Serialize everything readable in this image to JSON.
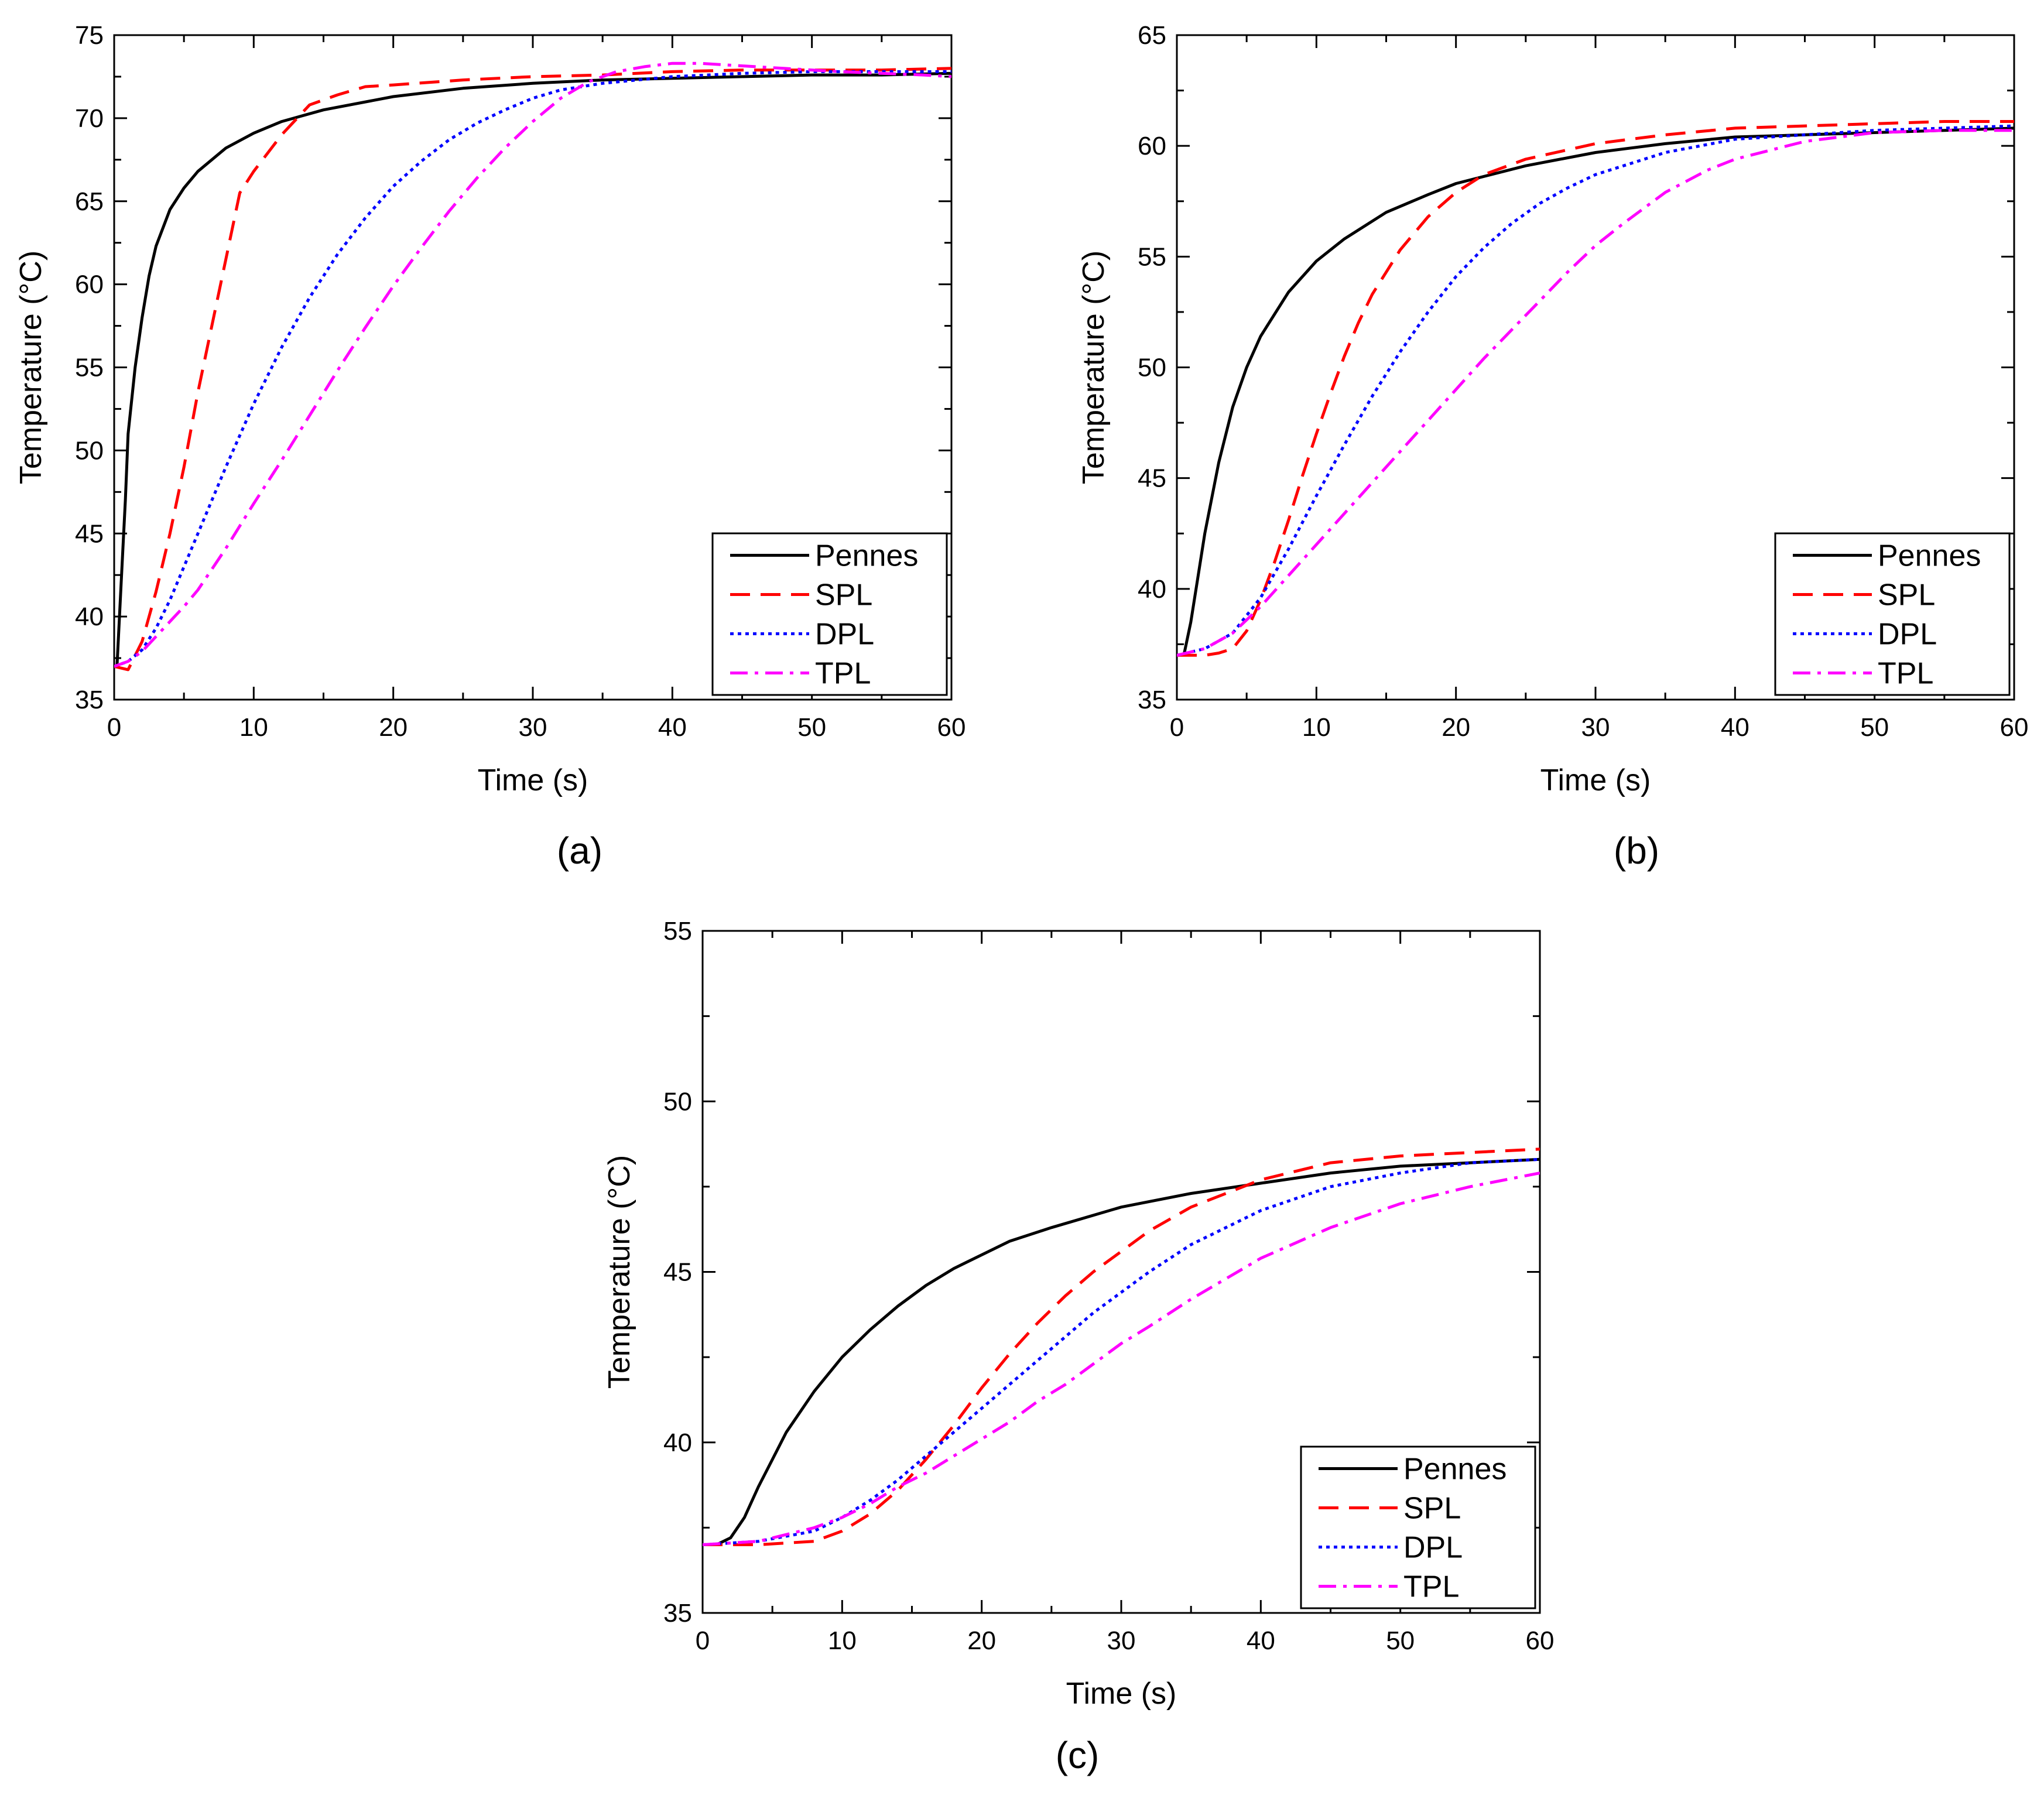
{
  "colors": {
    "background": "#ffffff",
    "axes": "#000000",
    "pennes": "#000000",
    "spl": "#ff0000",
    "dpl": "#0000ff",
    "tpl": "#ff00ff"
  },
  "chart_data": [
    {
      "type": "line",
      "caption": "(a)",
      "xlabel": "Time (s)",
      "ylabel": "Temperature (°C)",
      "xlim": [
        0,
        60
      ],
      "ylim": [
        35,
        75
      ],
      "xticks": [
        0,
        10,
        20,
        30,
        40,
        50,
        60
      ],
      "yticks": [
        35,
        40,
        45,
        50,
        55,
        60,
        65,
        70,
        75
      ],
      "legend_position": "bottom-right",
      "series": [
        {
          "name": "Pennes",
          "style": "solid",
          "x": [
            0.2,
            0.5,
            0.8,
            1,
            1.5,
            2,
            2.5,
            3,
            4,
            5,
            6,
            8,
            10,
            12,
            15,
            20,
            25,
            30,
            35,
            40,
            45,
            50,
            55,
            60
          ],
          "y": [
            37,
            42,
            47,
            51,
            55,
            58,
            60.5,
            62.3,
            64.5,
            65.8,
            66.8,
            68.2,
            69.1,
            69.8,
            70.5,
            71.3,
            71.8,
            72.1,
            72.3,
            72.4,
            72.5,
            72.6,
            72.6,
            72.7
          ]
        },
        {
          "name": "SPL",
          "style": "dashed",
          "x": [
            0,
            1,
            2,
            3,
            4,
            5,
            6,
            7,
            8,
            9,
            10,
            12,
            14,
            16,
            18,
            20,
            25,
            30,
            35,
            40,
            45,
            50,
            55,
            60
          ],
          "y": [
            37,
            36.8,
            38.5,
            41.5,
            45,
            49,
            53.5,
            57.5,
            61.5,
            65.5,
            66.8,
            69,
            70.8,
            71.4,
            71.9,
            72,
            72.3,
            72.5,
            72.6,
            72.8,
            72.9,
            72.9,
            72.9,
            73
          ]
        },
        {
          "name": "DPL",
          "style": "dotted",
          "x": [
            0,
            1,
            2,
            3,
            4,
            5,
            6,
            8,
            10,
            12,
            14,
            16,
            18,
            20,
            22,
            24,
            26,
            28,
            30,
            32,
            35,
            40,
            45,
            50,
            55,
            60
          ],
          "y": [
            37,
            37.3,
            38,
            39.3,
            41,
            43,
            45,
            49,
            52.8,
            56.2,
            59.2,
            61.8,
            64,
            65.9,
            67.4,
            68.7,
            69.7,
            70.5,
            71.2,
            71.7,
            72.1,
            72.5,
            72.7,
            72.8,
            72.8,
            72.8
          ]
        },
        {
          "name": "TPL",
          "style": "dashdot",
          "x": [
            0,
            1,
            2,
            3,
            4,
            5,
            6,
            8,
            10,
            12,
            14,
            16,
            18,
            20,
            22,
            24,
            26,
            28,
            30,
            32,
            34,
            36,
            38,
            40,
            42,
            44,
            46,
            48,
            50,
            52,
            55,
            58,
            60
          ],
          "y": [
            37,
            37.3,
            37.9,
            38.8,
            39.7,
            40.6,
            41.6,
            44.1,
            46.8,
            49.4,
            52.1,
            54.8,
            57.4,
            59.9,
            62.2,
            64.4,
            66.4,
            68.2,
            69.8,
            71.2,
            72.2,
            72.8,
            73.1,
            73.3,
            73.3,
            73.2,
            73.1,
            73,
            72.9,
            72.8,
            72.7,
            72.6,
            72.5
          ]
        }
      ]
    },
    {
      "type": "line",
      "caption": "(b)",
      "xlabel": "Time (s)",
      "ylabel": "Temperature (°C)",
      "xlim": [
        0,
        60
      ],
      "ylim": [
        35,
        65
      ],
      "xticks": [
        0,
        10,
        20,
        30,
        40,
        50,
        60
      ],
      "yticks": [
        35,
        40,
        45,
        50,
        55,
        60,
        65
      ],
      "legend_position": "bottom-right",
      "series": [
        {
          "name": "Pennes",
          "style": "solid",
          "x": [
            0.5,
            1,
            1.5,
            2,
            3,
            4,
            5,
            6,
            8,
            10,
            12,
            15,
            18,
            20,
            25,
            30,
            35,
            40,
            45,
            50,
            55,
            60
          ],
          "y": [
            37,
            38.5,
            40.5,
            42.5,
            45.7,
            48.2,
            50,
            51.4,
            53.4,
            54.8,
            55.8,
            57,
            57.8,
            58.3,
            59.1,
            59.7,
            60.1,
            60.4,
            60.5,
            60.6,
            60.7,
            60.8
          ]
        },
        {
          "name": "SPL",
          "style": "dashed",
          "x": [
            0,
            2,
            3,
            4,
            5,
            6,
            7,
            8,
            9,
            10,
            11,
            12,
            13,
            14,
            16,
            18,
            20,
            22,
            25,
            30,
            35,
            40,
            45,
            50,
            55,
            60
          ],
          "y": [
            37,
            37,
            37.1,
            37.3,
            38.1,
            39.5,
            41.2,
            43.1,
            45.1,
            47,
            48.8,
            50.5,
            52,
            53.3,
            55.3,
            56.8,
            57.9,
            58.7,
            59.4,
            60.1,
            60.5,
            60.8,
            60.9,
            61,
            61.1,
            61.1
          ]
        },
        {
          "name": "DPL",
          "style": "dotted",
          "x": [
            0,
            2,
            4,
            6,
            8,
            10,
            12,
            14,
            16,
            18,
            20,
            22,
            24,
            26,
            28,
            30,
            35,
            40,
            45,
            50,
            55,
            60
          ],
          "y": [
            37,
            37.3,
            38,
            39.6,
            41.8,
            44.2,
            46.5,
            48.7,
            50.7,
            52.5,
            54.1,
            55.4,
            56.5,
            57.4,
            58.1,
            58.7,
            59.7,
            60.3,
            60.5,
            60.7,
            60.8,
            60.9
          ]
        },
        {
          "name": "TPL",
          "style": "dashdot",
          "x": [
            0,
            2,
            4,
            6,
            8,
            10,
            12,
            14,
            16,
            18,
            20,
            22,
            24,
            26,
            28,
            30,
            32,
            35,
            38,
            40,
            45,
            50,
            55,
            60
          ],
          "y": [
            37,
            37.3,
            38,
            39.2,
            40.6,
            42,
            43.4,
            44.8,
            46.2,
            47.6,
            49,
            50.4,
            51.7,
            53,
            54.3,
            55.5,
            56.5,
            57.9,
            58.9,
            59.4,
            60.2,
            60.6,
            60.7,
            60.7
          ]
        }
      ]
    },
    {
      "type": "line",
      "caption": "(c)",
      "xlabel": "Time (s)",
      "ylabel": "Temperature (°C)",
      "xlim": [
        0,
        60
      ],
      "ylim": [
        35,
        55
      ],
      "xticks": [
        0,
        10,
        20,
        30,
        40,
        50,
        60
      ],
      "yticks": [
        35,
        40,
        45,
        50,
        55
      ],
      "legend_position": "bottom-right",
      "series": [
        {
          "name": "Pennes",
          "style": "solid",
          "x": [
            0,
            1,
            2,
            3,
            4,
            5,
            6,
            8,
            10,
            12,
            14,
            16,
            18,
            20,
            22,
            25,
            30,
            35,
            40,
            45,
            50,
            55,
            60
          ],
          "y": [
            37,
            37,
            37.2,
            37.8,
            38.7,
            39.5,
            40.3,
            41.5,
            42.5,
            43.3,
            44,
            44.6,
            45.1,
            45.5,
            45.9,
            46.3,
            46.9,
            47.3,
            47.6,
            47.9,
            48.1,
            48.2,
            48.3
          ]
        },
        {
          "name": "SPL",
          "style": "dashed",
          "x": [
            0,
            4,
            8,
            10,
            12,
            14,
            16,
            18,
            20,
            22,
            24,
            26,
            28,
            30,
            32,
            35,
            40,
            45,
            50,
            55,
            60
          ],
          "y": [
            37,
            37,
            37.1,
            37.4,
            37.9,
            38.6,
            39.5,
            40.5,
            41.6,
            42.6,
            43.5,
            44.3,
            45,
            45.6,
            46.2,
            46.9,
            47.7,
            48.2,
            48.4,
            48.5,
            48.6
          ]
        },
        {
          "name": "DPL",
          "style": "dotted",
          "x": [
            0,
            4,
            8,
            10,
            12,
            14,
            16,
            18,
            20,
            22,
            24,
            26,
            28,
            30,
            32,
            35,
            40,
            45,
            50,
            55,
            60
          ],
          "y": [
            37,
            37.1,
            37.4,
            37.8,
            38.3,
            38.9,
            39.6,
            40.3,
            41,
            41.7,
            42.4,
            43.1,
            43.8,
            44.4,
            45,
            45.8,
            46.8,
            47.5,
            47.9,
            48.2,
            48.3
          ]
        },
        {
          "name": "TPL",
          "style": "dashdot",
          "x": [
            0,
            4,
            8,
            10,
            12,
            14,
            16,
            18,
            20,
            22,
            24,
            26,
            28,
            30,
            32,
            35,
            40,
            45,
            50,
            55,
            60
          ],
          "y": [
            37,
            37.1,
            37.5,
            37.8,
            38.2,
            38.7,
            39.1,
            39.6,
            40.1,
            40.6,
            41.2,
            41.7,
            42.3,
            42.9,
            43.4,
            44.2,
            45.4,
            46.3,
            47,
            47.5,
            47.9
          ]
        }
      ]
    }
  ]
}
